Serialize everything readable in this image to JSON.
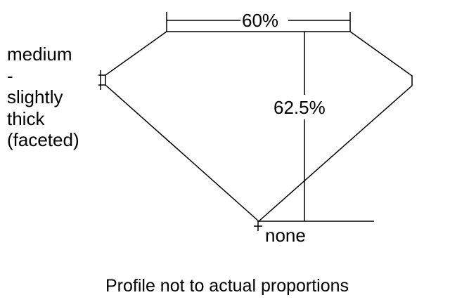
{
  "diagram": {
    "table_percent": "60%",
    "depth_percent": "62.5%",
    "girdle_label_lines": [
      "medium",
      "-",
      "slightly",
      "thick",
      "(faceted)"
    ],
    "culet_label": "none",
    "footer_note": "Profile not to actual proportions",
    "line_color": "#000000"
  }
}
